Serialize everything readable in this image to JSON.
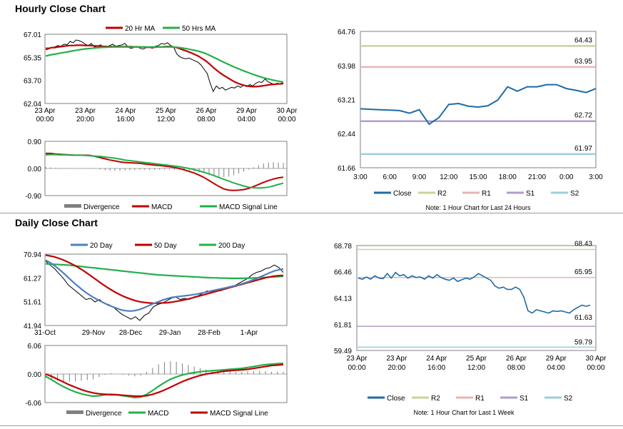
{
  "titles": {
    "hourly": "Hourly Close Chart",
    "daily": "Daily Close Chart"
  },
  "chart_data": [
    {
      "id": "hourly_price",
      "type": "line",
      "legend": [
        "20 Hr MA",
        "50 Hrs MA"
      ],
      "colors": {
        "price": "#000000",
        "ma20": "#c00000",
        "ma50": "#22b04b"
      },
      "y_ticks": [
        "67.01",
        "65.35",
        "63.70",
        "62.04"
      ],
      "ylim": [
        62.04,
        67.01
      ],
      "x_ticks": [
        [
          "23 Apr",
          "00:00"
        ],
        [
          "23 Apr",
          "20:00"
        ],
        [
          "24 Apr",
          "16:00"
        ],
        [
          "25 Apr",
          "12:00"
        ],
        [
          "26 Apr",
          "08:00"
        ],
        [
          "29 Apr",
          "04:00"
        ],
        [
          "30 Apr",
          "00:00"
        ]
      ],
      "series": [
        {
          "name": "Close",
          "values": [
            65.9,
            65.95,
            66.05,
            66.1,
            66.2,
            66.15,
            66.3,
            66.25,
            66.5,
            66.4,
            66.6,
            66.55,
            66.45,
            66.3,
            66.2,
            66.35,
            66.1,
            66.15,
            66.25,
            66.1,
            66.05,
            66.2,
            66.3,
            66.15,
            66.2,
            66.25,
            66.35,
            66.1,
            66.0,
            66.05,
            66.15,
            66.0,
            65.95,
            66.05,
            66.1,
            66.0,
            66.15,
            66.2,
            66.35,
            66.3,
            66.4,
            66.2,
            66.1,
            65.6,
            65.4,
            65.3,
            65.25,
            65.3,
            65.2,
            65.1,
            65.0,
            64.8,
            64.5,
            64.2,
            63.5,
            62.9,
            63.3,
            63.1,
            63.2,
            63.0,
            63.1,
            63.2,
            63.15,
            63.3,
            63.2,
            63.35,
            63.25,
            63.4,
            63.3,
            63.5,
            63.6,
            63.55,
            63.8,
            63.6,
            63.5,
            63.4,
            63.5,
            63.45,
            63.55
          ]
        },
        {
          "name": "20 Hr MA",
          "values": [
            66.0,
            66.0,
            66.05,
            66.05,
            66.1,
            66.12,
            66.15,
            66.18,
            66.2,
            66.2,
            66.22,
            66.22,
            66.22,
            66.2,
            66.2,
            66.2,
            66.18,
            66.17,
            66.15,
            66.14,
            66.13,
            66.13,
            66.12,
            66.12,
            66.12,
            66.12,
            66.12,
            66.12,
            66.12,
            66.11,
            66.1,
            66.1,
            66.1,
            66.08,
            66.07,
            66.07,
            66.08,
            66.1,
            66.1,
            66.12,
            66.13,
            66.12,
            66.1,
            66.05,
            65.98,
            65.9,
            65.82,
            65.74,
            65.65,
            65.55,
            65.45,
            65.32,
            65.18,
            65.02,
            64.84,
            64.62,
            64.45,
            64.28,
            64.12,
            63.98,
            63.85,
            63.72,
            63.6,
            63.5,
            63.42,
            63.35,
            63.3,
            63.27,
            63.25,
            63.25,
            63.27,
            63.3,
            63.33,
            63.37,
            63.4,
            63.42,
            63.44,
            63.45,
            63.47
          ]
        },
        {
          "name": "50 Hrs MA",
          "values": [
            65.45,
            65.5,
            65.55,
            65.58,
            65.62,
            65.66,
            65.7,
            65.74,
            65.78,
            65.82,
            65.86,
            65.9,
            65.93,
            65.96,
            65.98,
            66.0,
            66.02,
            66.04,
            66.06,
            66.07,
            66.08,
            66.09,
            66.1,
            66.1,
            66.1,
            66.1,
            66.1,
            66.1,
            66.1,
            66.1,
            66.1,
            66.1,
            66.1,
            66.1,
            66.1,
            66.1,
            66.1,
            66.1,
            66.1,
            66.1,
            66.1,
            66.1,
            66.1,
            66.08,
            66.05,
            66.02,
            65.98,
            65.94,
            65.9,
            65.85,
            65.8,
            65.74,
            65.67,
            65.58,
            65.48,
            65.37,
            65.27,
            65.16,
            65.05,
            64.95,
            64.85,
            64.75,
            64.65,
            64.56,
            64.47,
            64.38,
            64.3,
            64.22,
            64.14,
            64.06,
            63.99,
            63.92,
            63.86,
            63.8,
            63.75,
            63.7,
            63.66,
            63.62,
            63.58
          ]
        }
      ]
    },
    {
      "id": "hourly_macd",
      "type": "line",
      "legend": [
        "Divergence",
        "MACD",
        "MACD Signal Line"
      ],
      "colors": {
        "divergence": "#808080",
        "macd": "#c00000",
        "signal": "#22b04b"
      },
      "y_ticks": [
        "0.90",
        "0.00",
        "-0.90"
      ],
      "ylim": [
        -0.9,
        0.9
      ],
      "series": [
        {
          "name": "MACD",
          "values": [
            0.5,
            0.5,
            0.48,
            0.47,
            0.46,
            0.45,
            0.44,
            0.44,
            0.44,
            0.43,
            0.4,
            0.36,
            0.32,
            0.28,
            0.25,
            0.22,
            0.2,
            0.19,
            0.18,
            0.17,
            0.15,
            0.13,
            0.11,
            0.1,
            0.08,
            0.06,
            0.03,
            0.0,
            -0.05,
            -0.1,
            -0.15,
            -0.22,
            -0.3,
            -0.4,
            -0.5,
            -0.6,
            -0.68,
            -0.72,
            -0.73,
            -0.72,
            -0.7,
            -0.66,
            -0.6,
            -0.53,
            -0.46,
            -0.4,
            -0.35,
            -0.31,
            -0.29
          ]
        },
        {
          "name": "MACD Signal Line",
          "values": [
            0.45,
            0.46,
            0.46,
            0.45,
            0.45,
            0.44,
            0.44,
            0.44,
            0.43,
            0.42,
            0.41,
            0.4,
            0.38,
            0.36,
            0.34,
            0.31,
            0.28,
            0.26,
            0.24,
            0.22,
            0.2,
            0.18,
            0.16,
            0.14,
            0.12,
            0.1,
            0.08,
            0.06,
            0.03,
            0.0,
            -0.04,
            -0.08,
            -0.13,
            -0.18,
            -0.24,
            -0.3,
            -0.36,
            -0.42,
            -0.48,
            -0.53,
            -0.58,
            -0.62,
            -0.64,
            -0.65,
            -0.64,
            -0.62,
            -0.58,
            -0.53,
            -0.49
          ]
        }
      ]
    },
    {
      "id": "hourly_24h",
      "type": "line",
      "legend": [
        "Close",
        "R2",
        "R1",
        "S1",
        "S2"
      ],
      "colors": {
        "close": "#1f6aa5",
        "R2": "#c7d49a",
        "R1": "#e8b3b3",
        "S1": "#b19cc9",
        "S2": "#9ccfd9"
      },
      "y_ticks": [
        "64.76",
        "63.98",
        "63.21",
        "62.44",
        "61.66"
      ],
      "ylim": [
        61.66,
        64.76
      ],
      "x_ticks": [
        "3:00",
        "6:00",
        "9:00",
        "12:00",
        "15:00",
        "18:00",
        "21:00",
        "0:00",
        "3:00"
      ],
      "levels": {
        "R2": "64.43",
        "R1": "63.95",
        "S1": "62.72",
        "S2": "61.97"
      },
      "series": [
        {
          "name": "Close",
          "values": [
            63.0,
            62.99,
            62.98,
            62.97,
            62.96,
            62.9,
            62.98,
            62.65,
            62.8,
            63.1,
            63.12,
            63.06,
            63.04,
            63.07,
            63.2,
            63.5,
            63.4,
            63.5,
            63.5,
            63.55,
            63.55,
            63.46,
            63.42,
            63.37,
            63.46
          ]
        }
      ],
      "note": "Note: 1 Hour Chart for Last 24 Hours"
    },
    {
      "id": "daily_price",
      "type": "line",
      "legend": [
        "20 Day",
        "50 Day",
        "200 Day"
      ],
      "colors": {
        "price": "#000000",
        "d20": "#4f7fbe",
        "d50": "#c00000",
        "d200": "#22b04b"
      },
      "y_ticks": [
        "70.94",
        "61.27",
        "51.61",
        "41.94"
      ],
      "ylim": [
        41.94,
        70.94
      ],
      "x_ticks": [
        "31-Oct",
        "29-Nov",
        "28-Dec",
        "29-Jan",
        "28-Feb",
        "1-Apr"
      ],
      "series": [
        {
          "name": "Close",
          "values": [
            68.0,
            66.5,
            65.0,
            63.0,
            61.0,
            58.5,
            57.0,
            55.5,
            54.0,
            52.5,
            53.0,
            51.5,
            52.5,
            51.0,
            50.5,
            49.5,
            48.0,
            46.5,
            45.5,
            44.5,
            45.5,
            44.0,
            46.0,
            47.0,
            49.5,
            50.5,
            51.0,
            52.0,
            53.0,
            53.5,
            52.5,
            53.0,
            52.5,
            53.5,
            54.0,
            55.0,
            56.0,
            55.5,
            56.5,
            56.0,
            57.0,
            57.5,
            58.0,
            59.0,
            60.0,
            61.0,
            62.5,
            63.5,
            64.0,
            65.0,
            65.5,
            66.5,
            65.5,
            63.5
          ]
        },
        {
          "name": "20 Day",
          "values": [
            68.5,
            67.5,
            66.2,
            64.8,
            63.2,
            61.5,
            59.8,
            58.2,
            56.7,
            55.3,
            54.1,
            53.0,
            52.0,
            51.1,
            50.2,
            49.5,
            48.8,
            48.2,
            47.9,
            47.8,
            48.0,
            48.5,
            49.2,
            50.0,
            50.8,
            51.5,
            52.2,
            52.8,
            53.3,
            53.6,
            53.8,
            54.0,
            54.2,
            54.5,
            54.8,
            55.2,
            55.6,
            56.0,
            56.4,
            56.8,
            57.2,
            57.6,
            58.0,
            58.5,
            59.0,
            59.6,
            60.3,
            61.0,
            61.8,
            62.6,
            63.4,
            64.1,
            64.6,
            64.9
          ]
        },
        {
          "name": "50 Day",
          "values": [
            70.5,
            70.2,
            69.8,
            69.2,
            68.5,
            67.7,
            66.8,
            65.8,
            64.7,
            63.5,
            62.2,
            60.9,
            59.6,
            58.3,
            57.1,
            56.0,
            55.0,
            54.1,
            53.3,
            52.6,
            52.0,
            51.6,
            51.3,
            51.1,
            51.0,
            51.0,
            51.1,
            51.2,
            51.4,
            51.7,
            52.0,
            52.4,
            52.8,
            53.3,
            53.8,
            54.3,
            54.8,
            55.3,
            55.8,
            56.3,
            56.8,
            57.3,
            57.8,
            58.3,
            58.8,
            59.3,
            59.8,
            60.3,
            60.8,
            61.3,
            61.7,
            62.0,
            62.2,
            62.3
          ]
        },
        {
          "name": "200 Day",
          "values": [
            67.0,
            66.9,
            66.8,
            66.7,
            66.6,
            66.5,
            66.3,
            66.1,
            65.9,
            65.7,
            65.5,
            65.3,
            65.1,
            64.9,
            64.7,
            64.5,
            64.3,
            64.1,
            63.9,
            63.7,
            63.5,
            63.3,
            63.1,
            62.9,
            62.7,
            62.5,
            62.4,
            62.3,
            62.2,
            62.1,
            62.0,
            61.9,
            61.8,
            61.7,
            61.6,
            61.5,
            61.4,
            61.3,
            61.3,
            61.2,
            61.2,
            61.1,
            61.1,
            61.1,
            61.1,
            61.2,
            61.2,
            61.3,
            61.4,
            61.5,
            61.6,
            61.7,
            61.8,
            61.9
          ]
        }
      ]
    },
    {
      "id": "daily_macd",
      "type": "line",
      "legend": [
        "Divergence",
        "MACD",
        "MACD Signal Line"
      ],
      "colors": {
        "divergence": "#808080",
        "macd": "#22b04b",
        "signal": "#c00000"
      },
      "y_ticks": [
        "6.06",
        "0.00",
        "-6.06"
      ],
      "ylim": [
        -6.06,
        6.06
      ],
      "series": [
        {
          "name": "MACD",
          "values": [
            -0.5,
            -1.2,
            -2.0,
            -2.7,
            -3.3,
            -3.8,
            -4.2,
            -4.5,
            -4.7,
            -4.6,
            -4.4,
            -4.3,
            -4.4,
            -4.6,
            -4.8,
            -5.0,
            -4.9,
            -4.3,
            -3.5,
            -2.6,
            -1.8,
            -1.1,
            -0.6,
            -0.2,
            0.1,
            0.3,
            0.5,
            0.6,
            0.7,
            0.8,
            0.9,
            1.0,
            1.1,
            1.2,
            1.4,
            1.6,
            1.8,
            2.0,
            2.1,
            2.2,
            2.3
          ]
        },
        {
          "name": "MACD Signal Line",
          "values": [
            0.0,
            -0.5,
            -1.1,
            -1.7,
            -2.3,
            -2.8,
            -3.3,
            -3.7,
            -4.0,
            -4.2,
            -4.3,
            -4.4,
            -4.4,
            -4.5,
            -4.6,
            -4.7,
            -4.7,
            -4.6,
            -4.3,
            -3.9,
            -3.4,
            -2.8,
            -2.2,
            -1.6,
            -1.1,
            -0.7,
            -0.3,
            0.0,
            0.2,
            0.4,
            0.6,
            0.7,
            0.8,
            0.9,
            1.0,
            1.2,
            1.4,
            1.6,
            1.8,
            1.9,
            2.0
          ]
        }
      ]
    },
    {
      "id": "daily_week",
      "type": "line",
      "legend": [
        "Close",
        "R2",
        "R1",
        "S1",
        "S2"
      ],
      "colors": {
        "close": "#1f6aa5",
        "R2": "#c7d49a",
        "R1": "#e8b3b3",
        "S1": "#b19cc9",
        "S2": "#9ccfd9"
      },
      "y_ticks": [
        "68.78",
        "66.46",
        "64.13",
        "61.81",
        "59.49"
      ],
      "ylim": [
        59.49,
        68.78
      ],
      "x_ticks": [
        [
          "23 Apr",
          "00:00"
        ],
        [
          "23 Apr",
          "20:00"
        ],
        [
          "24 Apr",
          "16:00"
        ],
        [
          "25 Apr",
          "12:00"
        ],
        [
          "26 Apr",
          "08:00"
        ],
        [
          "29 Apr",
          "04:00"
        ],
        [
          "30 Apr",
          "00:00"
        ]
      ],
      "levels": {
        "R2": "68.43",
        "R1": "65.95",
        "S1": "61.63",
        "S2": "59.79"
      },
      "series": [
        {
          "name": "Close",
          "values": [
            65.9,
            65.8,
            66.0,
            65.8,
            66.1,
            65.9,
            65.85,
            66.3,
            65.9,
            66.4,
            66.1,
            66.2,
            65.9,
            66.1,
            65.95,
            66.0,
            65.8,
            66.1,
            65.9,
            66.2,
            65.95,
            65.8,
            65.7,
            65.9,
            65.6,
            65.75,
            65.9,
            65.8,
            66.0,
            66.3,
            66.1,
            65.9,
            65.7,
            65.2,
            65.0,
            65.1,
            64.9,
            64.9,
            65.1,
            64.9,
            64.2,
            63.0,
            62.8,
            63.1,
            63.0,
            62.9,
            62.8,
            63.0,
            62.95,
            63.0,
            62.9,
            62.8,
            63.1,
            63.3,
            63.5,
            63.4,
            63.5
          ]
        }
      ],
      "note": "Note: 1 Hour Chart for Last 1 Week"
    }
  ]
}
